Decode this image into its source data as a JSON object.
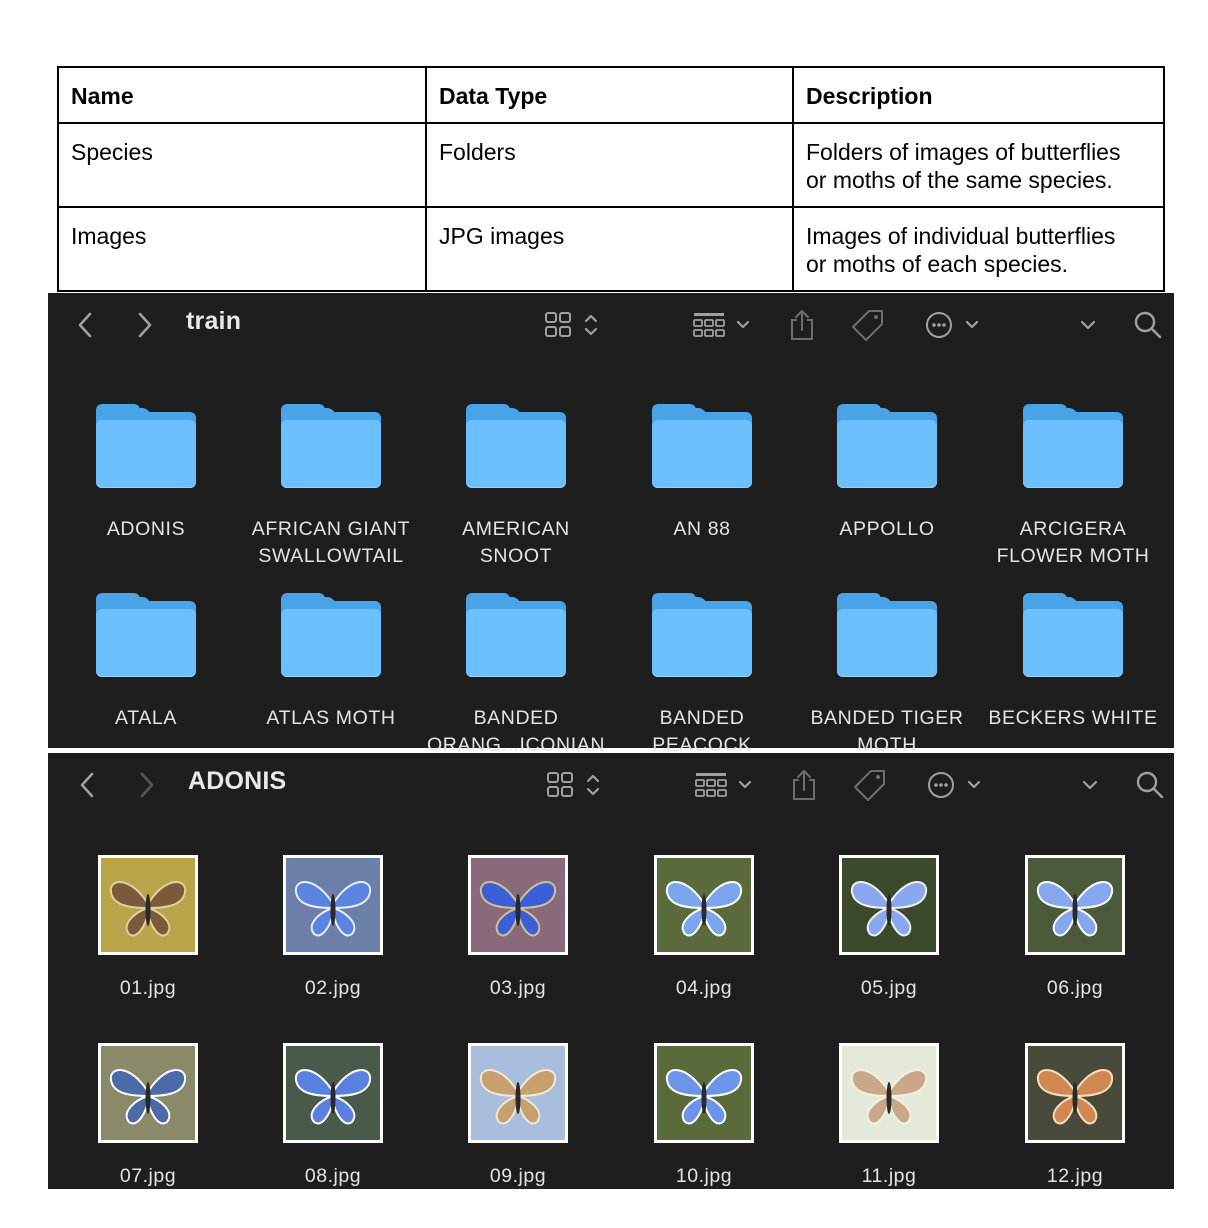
{
  "table": {
    "headers": [
      "Name",
      "Data Type",
      "Description"
    ],
    "rows": [
      {
        "name": "Species",
        "type": "Folders",
        "desc_1": "Folders of images of butterflies",
        "desc_2": "or moths of the same species."
      },
      {
        "name": "Images",
        "type": "JPG images",
        "desc_1": "Images of individual butterflies",
        "desc_2": "or moths of each species."
      }
    ]
  },
  "finder_train": {
    "title": "train",
    "folders": [
      {
        "line1": "ADONIS",
        "line2": ""
      },
      {
        "line1": "AFRICAN GIANT",
        "line2": "SWALLOWTAIL"
      },
      {
        "line1": "AMERICAN",
        "line2": "SNOOT"
      },
      {
        "line1": "AN 88",
        "line2": ""
      },
      {
        "line1": "APPOLLO",
        "line2": ""
      },
      {
        "line1": "ARCIGERA",
        "line2": "FLOWER MOTH"
      },
      {
        "line1": "ATALA",
        "line2": ""
      },
      {
        "line1": "ATLAS MOTH",
        "line2": ""
      },
      {
        "line1": "BANDED",
        "line2": "ORANG...ICONIAN"
      },
      {
        "line1": "BANDED",
        "line2": "PEACOCK"
      },
      {
        "line1": "BANDED TIGER",
        "line2": "MOTH"
      },
      {
        "line1": "BECKERS WHITE",
        "line2": ""
      }
    ]
  },
  "finder_adonis": {
    "title": "ADONIS",
    "files": [
      "01.jpg",
      "02.jpg",
      "03.jpg",
      "04.jpg",
      "05.jpg",
      "06.jpg",
      "07.jpg",
      "08.jpg",
      "09.jpg",
      "10.jpg",
      "11.jpg",
      "12.jpg"
    ]
  },
  "icons": {
    "back": "chevron-left-icon",
    "forward": "chevron-right-icon",
    "view": "icon-grid-icon",
    "group": "group-by-icon",
    "share": "share-icon",
    "tag": "tag-icon",
    "more": "ellipsis-circle-icon",
    "expand": "chevron-down-icon",
    "search": "search-icon"
  },
  "colors": {
    "window_bg": "#1e1e1e",
    "folder_front": "#6dc0ff",
    "folder_back": "#4aa3e6"
  }
}
